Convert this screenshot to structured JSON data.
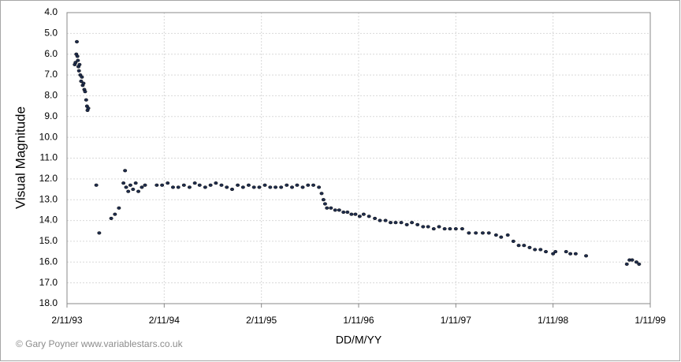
{
  "chart_data": {
    "type": "scatter",
    "y_label": "Visual Magnitude",
    "x_label": "DD/M/YY",
    "annotation": "© Gary Poyner  www.variablestars.co.uk",
    "color": "#1f2d4d",
    "grid": true,
    "xlim": [
      "1993-11-02",
      "1999-11-01"
    ],
    "xticks": [
      {
        "value": "1993-11-02",
        "label": "2/11/93"
      },
      {
        "value": "1994-11-02",
        "label": "2/11/94"
      },
      {
        "value": "1995-11-02",
        "label": "2/11/95"
      },
      {
        "value": "1996-11-01",
        "label": "1/11/96"
      },
      {
        "value": "1997-11-01",
        "label": "1/11/97"
      },
      {
        "value": "1998-11-01",
        "label": "1/11/98"
      },
      {
        "value": "1999-11-01",
        "label": "1/11/99"
      }
    ],
    "ylim": [
      18,
      4
    ],
    "yticks": [
      {
        "value": 4,
        "label": "4.0"
      },
      {
        "value": 5,
        "label": "5.0"
      },
      {
        "value": 6,
        "label": "6.0"
      },
      {
        "value": 7,
        "label": "7.0"
      },
      {
        "value": 8,
        "label": "8.0"
      },
      {
        "value": 9,
        "label": "9.0"
      },
      {
        "value": 10,
        "label": "10.0"
      },
      {
        "value": 11,
        "label": "11.0"
      },
      {
        "value": 12,
        "label": "12.0"
      },
      {
        "value": 13,
        "label": "13.0"
      },
      {
        "value": 14,
        "label": "14.0"
      },
      {
        "value": 15,
        "label": "15.0"
      },
      {
        "value": 16,
        "label": "16.0"
      },
      {
        "value": 17,
        "label": "17.0"
      },
      {
        "value": 18,
        "label": "18.0"
      }
    ],
    "x": [
      "1993-12-01",
      "1993-12-04",
      "1993-12-07",
      "1993-12-09",
      "1993-12-11",
      "1993-12-13",
      "1993-12-15",
      "1993-12-17",
      "1993-12-19",
      "1993-12-22",
      "1993-12-25",
      "1993-12-28",
      "1993-12-31",
      "1994-01-03",
      "1994-01-06",
      "1994-01-09",
      "1994-01-13",
      "1994-01-16",
      "1994-01-18",
      "1994-01-21",
      "1994-02-20",
      "1994-03-03",
      "1994-04-17",
      "1994-05-01",
      "1994-05-16",
      "1994-06-02",
      "1994-06-08",
      "1994-06-12",
      "1994-06-20",
      "1994-06-28",
      "1994-07-08",
      "1994-07-18",
      "1994-07-28",
      "1994-08-10",
      "1994-08-22",
      "1994-10-05",
      "1994-10-25",
      "1994-11-15",
      "1994-12-05",
      "1994-12-25",
      "1995-01-15",
      "1995-02-05",
      "1995-02-25",
      "1995-03-15",
      "1995-04-05",
      "1995-04-25",
      "1995-05-15",
      "1995-06-05",
      "1995-06-25",
      "1995-07-15",
      "1995-08-05",
      "1995-08-25",
      "1995-09-15",
      "1995-10-05",
      "1995-10-25",
      "1995-11-15",
      "1995-12-05",
      "1995-12-25",
      "1996-01-15",
      "1996-02-05",
      "1996-02-25",
      "1996-03-15",
      "1996-04-05",
      "1996-04-25",
      "1996-05-15",
      "1996-06-05",
      "1996-06-15",
      "1996-06-22",
      "1996-06-28",
      "1996-07-05",
      "1996-07-20",
      "1996-08-05",
      "1996-08-20",
      "1996-09-05",
      "1996-09-20",
      "1996-10-05",
      "1996-10-20",
      "1996-11-05",
      "1996-11-20",
      "1996-12-10",
      "1997-01-01",
      "1997-01-20",
      "1997-02-10",
      "1997-03-01",
      "1997-03-20",
      "1997-04-10",
      "1997-05-01",
      "1997-05-20",
      "1997-06-10",
      "1997-07-01",
      "1997-07-20",
      "1997-08-10",
      "1997-08-30",
      "1997-09-20",
      "1997-10-10",
      "1997-11-01",
      "1997-11-25",
      "1997-12-20",
      "1998-01-15",
      "1998-02-10",
      "1998-03-05",
      "1998-04-01",
      "1998-04-20",
      "1998-05-15",
      "1998-06-05",
      "1998-06-25",
      "1998-07-15",
      "1998-08-05",
      "1998-08-25",
      "1998-09-15",
      "1998-10-05",
      "1998-11-01",
      "1998-11-10",
      "1998-12-20",
      "1999-01-05",
      "1999-01-25",
      "1999-03-05",
      "1999-08-05",
      "1999-08-15",
      "1999-08-25",
      "1999-09-10",
      "1999-09-20"
    ],
    "values": [
      6.5,
      6.4,
      6.0,
      5.4,
      6.1,
      6.3,
      6.6,
      6.8,
      6.5,
      7.0,
      7.3,
      7.1,
      7.5,
      7.4,
      7.7,
      7.8,
      8.2,
      8.5,
      8.7,
      8.6,
      12.3,
      14.6,
      13.9,
      13.7,
      13.4,
      12.2,
      11.6,
      12.4,
      12.6,
      12.3,
      12.5,
      12.2,
      12.6,
      12.4,
      12.3,
      12.3,
      12.3,
      12.2,
      12.4,
      12.4,
      12.3,
      12.4,
      12.2,
      12.3,
      12.4,
      12.3,
      12.2,
      12.3,
      12.4,
      12.5,
      12.3,
      12.4,
      12.3,
      12.4,
      12.4,
      12.3,
      12.4,
      12.4,
      12.4,
      12.3,
      12.4,
      12.3,
      12.4,
      12.3,
      12.3,
      12.4,
      12.7,
      13.0,
      13.2,
      13.4,
      13.4,
      13.5,
      13.5,
      13.6,
      13.6,
      13.7,
      13.7,
      13.8,
      13.7,
      13.8,
      13.9,
      14.0,
      14.0,
      14.1,
      14.1,
      14.1,
      14.2,
      14.1,
      14.2,
      14.3,
      14.3,
      14.4,
      14.3,
      14.4,
      14.4,
      14.4,
      14.4,
      14.6,
      14.6,
      14.6,
      14.6,
      14.7,
      14.8,
      14.7,
      15.0,
      15.2,
      15.2,
      15.3,
      15.4,
      15.4,
      15.5,
      15.6,
      15.5,
      15.5,
      15.6,
      15.6,
      15.7,
      16.1,
      15.9,
      15.9,
      16.0,
      16.1
    ]
  }
}
